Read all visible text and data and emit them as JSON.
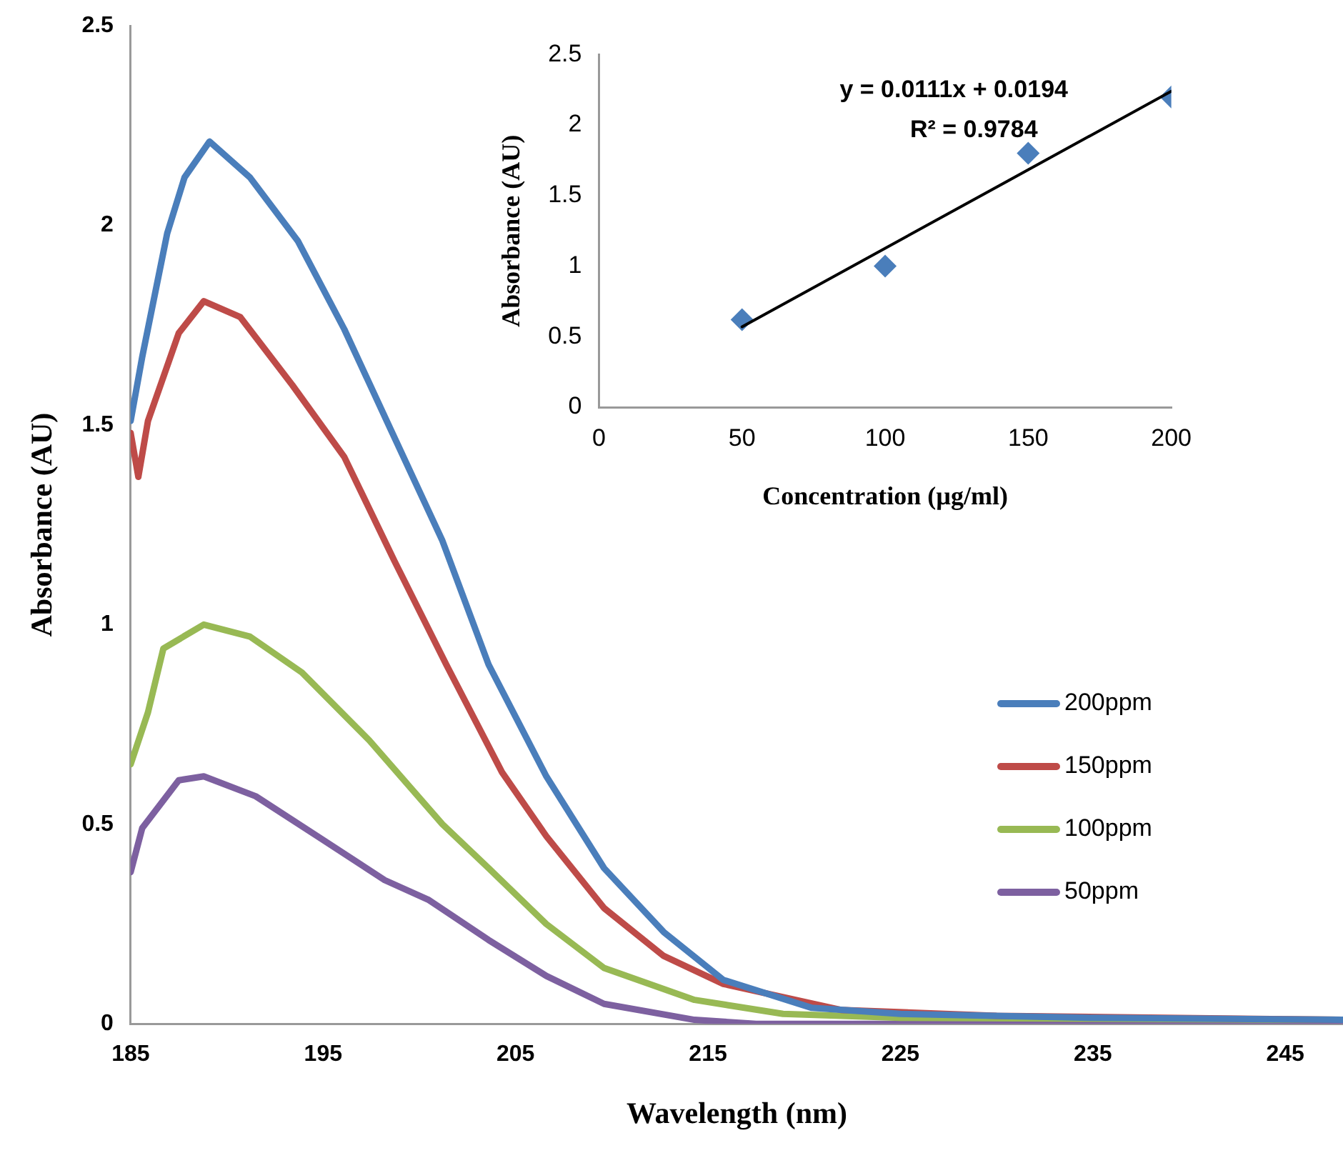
{
  "chart_data": [
    {
      "type": "line",
      "xlabel": "Wavelength (nm)",
      "ylabel": "Absorbance (AU)",
      "xlim": [
        185,
        248
      ],
      "xticks": [
        185,
        195,
        205,
        215,
        225,
        235,
        245
      ],
      "ylim": [
        0,
        2.5
      ],
      "yticks": [
        0,
        0.5,
        1,
        1.5,
        2,
        2.5
      ],
      "grid": false,
      "legend": "right",
      "marker": "none",
      "line_style": "solid",
      "series": [
        {
          "name": "200ppm",
          "color": "#4a7ebb",
          "x": [
            185,
            185.6,
            186.9,
            187.8,
            189.1,
            191.2,
            193.7,
            196.1,
            198.5,
            201.2,
            203.6,
            206.6,
            209.6,
            212.7,
            215.8,
            220.4,
            225,
            235,
            248
          ],
          "values": [
            1.51,
            1.67,
            1.98,
            2.12,
            2.21,
            2.12,
            1.96,
            1.74,
            1.49,
            1.21,
            0.9,
            0.62,
            0.39,
            0.23,
            0.11,
            0.04,
            0.025,
            0.015,
            0.01
          ]
        },
        {
          "name": "150ppm",
          "color": "#be4b48",
          "x": [
            185,
            185.4,
            185.9,
            187.5,
            188.8,
            190.7,
            193.4,
            196.1,
            198.7,
            201.4,
            204.3,
            206.6,
            209.6,
            212.7,
            215.8,
            221.9,
            230,
            248
          ],
          "values": [
            1.48,
            1.37,
            1.51,
            1.73,
            1.81,
            1.77,
            1.6,
            1.42,
            1.16,
            0.9,
            0.63,
            0.47,
            0.29,
            0.17,
            0.1,
            0.035,
            0.02,
            0.01
          ]
        },
        {
          "name": "100ppm",
          "color": "#98b954",
          "x": [
            185,
            185.9,
            186.7,
            188.8,
            191.2,
            193.9,
            197.4,
            201.2,
            203.6,
            206.6,
            209.6,
            214.3,
            218.9,
            225,
            248
          ],
          "values": [
            0.65,
            0.78,
            0.94,
            1,
            0.97,
            0.88,
            0.71,
            0.5,
            0.39,
            0.25,
            0.14,
            0.06,
            0.025,
            0.015,
            0.01
          ]
        },
        {
          "name": "50ppm",
          "color": "#7d60a0",
          "x": [
            185,
            185.6,
            187.5,
            188.8,
            191.5,
            194.7,
            198.2,
            200.5,
            203.6,
            206.6,
            209.6,
            214.3,
            217.5,
            248
          ],
          "values": [
            0.38,
            0.49,
            0.61,
            0.62,
            0.57,
            0.47,
            0.36,
            0.31,
            0.21,
            0.12,
            0.05,
            0.01,
            0,
            0
          ]
        }
      ]
    },
    {
      "type": "scatter",
      "xlabel": "Concentration (µg/ml)",
      "ylabel": "Absorbance (AU)",
      "xlim": [
        0,
        200
      ],
      "xticks": [
        0,
        50,
        100,
        150,
        200
      ],
      "ylim": [
        0,
        2.5
      ],
      "yticks": [
        0,
        0.5,
        1,
        1.5,
        2,
        2.5
      ],
      "grid": false,
      "legend": false,
      "marker": "diamond",
      "annotations": [
        "y = 0.0111x + 0.0194",
        "R² = 0.9784"
      ],
      "series": [
        {
          "color": "#4a7ebb",
          "x": [
            50,
            100,
            150,
            200
          ],
          "values": [
            0.62,
            1,
            1.8,
            2.2
          ]
        },
        {
          "type": "line",
          "color": "#000000",
          "marker": "none",
          "x": [
            50,
            200
          ],
          "values": [
            0.57,
            2.24
          ]
        }
      ]
    }
  ]
}
